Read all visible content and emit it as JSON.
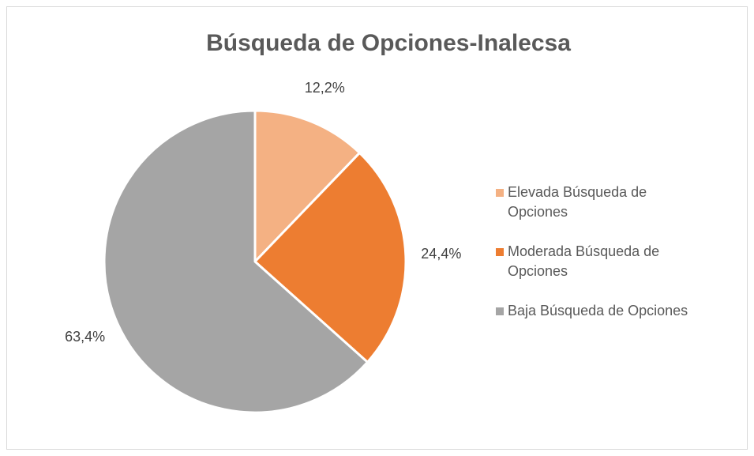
{
  "chart_data": {
    "type": "pie",
    "title": "Búsqueda de Opciones-Inalecsa",
    "categories": [
      "Elevada Búsqueda de Opciones",
      "Moderada Búsqueda de Opciones",
      "Baja Búsqueda de Opciones"
    ],
    "values": [
      12.2,
      24.4,
      63.4
    ],
    "value_labels": [
      "12,2%",
      "24,4%",
      "63,4%"
    ],
    "colors": [
      "#f4b183",
      "#ed7d31",
      "#a5a5a5"
    ],
    "legend": "right"
  }
}
